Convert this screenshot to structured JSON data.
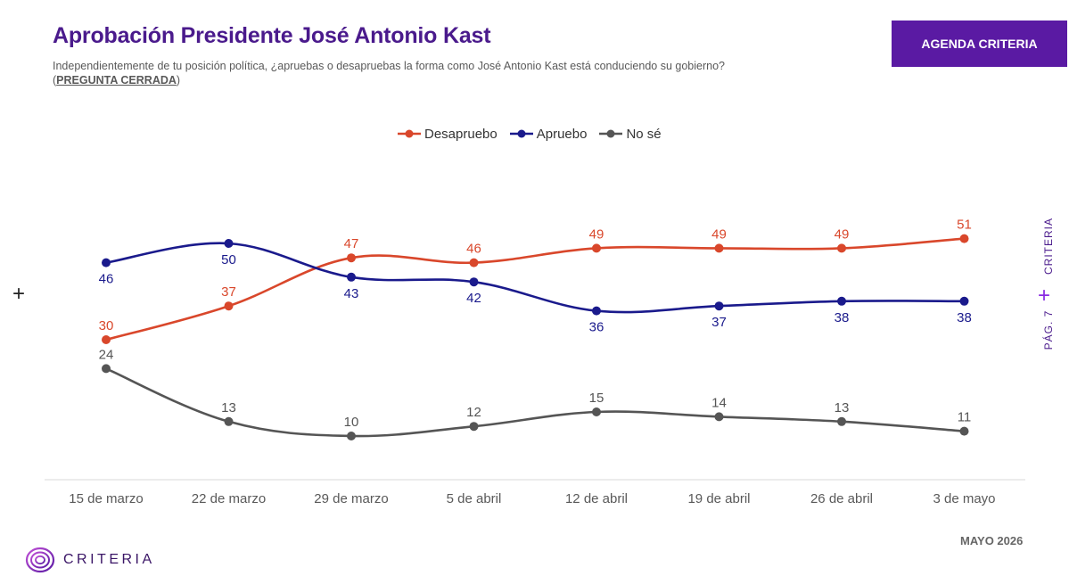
{
  "header": {
    "title": "Aprobación Presidente José Antonio Kast",
    "subtitle_main": "Independientemente de tu posición política, ¿apruebas o desapruebas la forma como José Antonio Kast está conduciendo su gobierno? (",
    "subtitle_emph": "PREGUNTA CERRADA",
    "subtitle_end": ")",
    "badge": "AGENDA CRITERIA"
  },
  "side": {
    "brand_vertical": "CRITERIA",
    "page_vertical": "PÁG. 7",
    "plus": "+"
  },
  "footer": {
    "date": "MAYO 2026",
    "logo_text": "CRITERIA"
  },
  "colors": {
    "accent": "#5a1aa3",
    "title": "#4a1a8c",
    "desapruebo": "#d9472b",
    "apruebo": "#1a1a8c",
    "nose": "#555555"
  },
  "chart_data": {
    "type": "line",
    "categories": [
      "15 de marzo",
      "22 de marzo",
      "29 de marzo",
      "5 de abril",
      "12 de abril",
      "19 de abril",
      "26 de abril",
      "3 de mayo"
    ],
    "series": [
      {
        "name": "Desapruebo",
        "color": "#d9472b",
        "values": [
          30,
          37,
          47,
          46,
          49,
          49,
          49,
          51
        ]
      },
      {
        "name": "Apruebo",
        "color": "#1a1a8c",
        "values": [
          46,
          50,
          43,
          42,
          36,
          37,
          38,
          38
        ]
      },
      {
        "name": "No sé",
        "color": "#555555",
        "values": [
          24,
          13,
          10,
          12,
          15,
          14,
          13,
          11
        ]
      }
    ],
    "ylim": [
      0,
      60
    ],
    "legend_position": "top-center",
    "grid": false
  }
}
